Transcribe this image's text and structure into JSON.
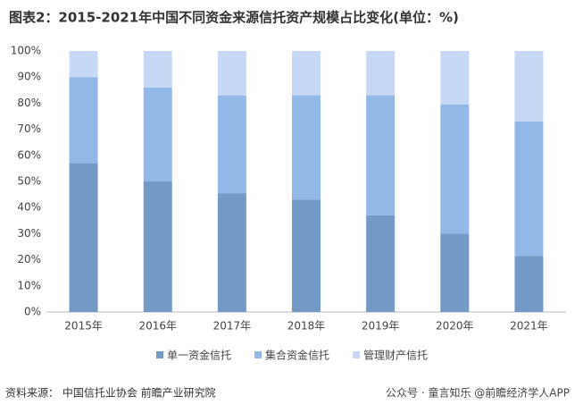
{
  "chart_data": {
    "type": "stacked_bar",
    "title": "图表2：2015-2021年中国不同资金来源信托资产规模占比变化(单位：%)",
    "source": "资料来源： 中国信托业协会 前瞻产业研究院",
    "footer": "公众号 · 童言知乐 @前瞻经济学人APP",
    "categories": [
      "2015年",
      "2016年",
      "2017年",
      "2018年",
      "2019年",
      "2020年",
      "2021年"
    ],
    "series": [
      {
        "name": "单一资金信托",
        "color": "#7399c6",
        "values": [
          57,
          50,
          45.5,
          43,
          37,
          30,
          21.5
        ]
      },
      {
        "name": "集合资金信托",
        "color": "#92b8e8",
        "values": [
          33,
          36,
          37.5,
          40,
          46,
          49.5,
          51.5
        ]
      },
      {
        "name": "管理财产信托",
        "color": "#c6d8f3",
        "values": [
          10,
          14,
          17,
          17,
          17,
          20.5,
          27
        ]
      }
    ],
    "ylim": [
      0,
      100
    ],
    "yticks": [
      {
        "value": 0,
        "label": "0%"
      },
      {
        "value": 10,
        "label": "10%"
      },
      {
        "value": 20,
        "label": "20%"
      },
      {
        "value": 30,
        "label": "30%"
      },
      {
        "value": 40,
        "label": "40%"
      },
      {
        "value": 50,
        "label": "50%"
      },
      {
        "value": 60,
        "label": "60%"
      },
      {
        "value": 70,
        "label": "70%"
      },
      {
        "value": 80,
        "label": "80%"
      },
      {
        "value": 90,
        "label": "90%"
      },
      {
        "value": 100,
        "label": "100%"
      }
    ]
  }
}
